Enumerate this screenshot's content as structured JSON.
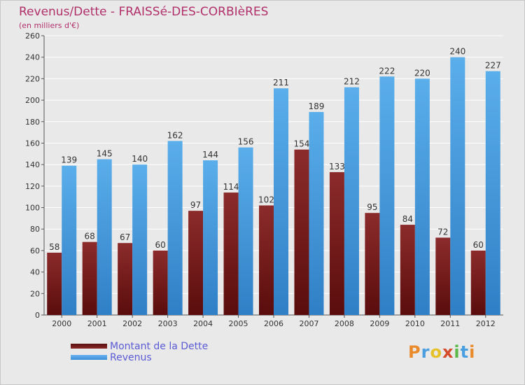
{
  "header": {
    "title": "Revenus/Dette - FRAISSé-DES-CORBIèRES",
    "subtitle": "(en milliers d'€)"
  },
  "colors": {
    "title": "#b0306a",
    "legend_text": "#5b5bd6",
    "debt": "#7a2020",
    "revenue": "#4ea1e6",
    "background": "#e9e9e9"
  },
  "chart_data": {
    "type": "bar",
    "categories": [
      "2000",
      "2001",
      "2002",
      "2003",
      "2004",
      "2005",
      "2006",
      "2007",
      "2008",
      "2009",
      "2010",
      "2011",
      "2012"
    ],
    "series": [
      {
        "name": "Montant de la Dette",
        "values": [
          58,
          68,
          67,
          60,
          97,
          114,
          102,
          154,
          133,
          95,
          84,
          72,
          60
        ]
      },
      {
        "name": "Revenus",
        "values": [
          139,
          145,
          140,
          162,
          144,
          156,
          211,
          189,
          212,
          222,
          220,
          240,
          227
        ]
      }
    ],
    "title": "Revenus/Dette - FRAISSé-DES-CORBIèRES",
    "ylabel": "(en milliers d'€)",
    "ylim": [
      0,
      260
    ],
    "yticks": [
      0,
      20,
      40,
      60,
      80,
      100,
      120,
      140,
      160,
      180,
      200,
      220,
      240,
      260
    ],
    "grid": true,
    "legend_position": "bottom-left"
  },
  "legend": [
    {
      "label": "Montant de la Dette",
      "color": "#7a2020"
    },
    {
      "label": "Revenus",
      "color": "#4ea1e6"
    }
  ],
  "brand": {
    "letters": [
      "P",
      "r",
      "o",
      "x",
      "i",
      "t",
      "i"
    ]
  }
}
